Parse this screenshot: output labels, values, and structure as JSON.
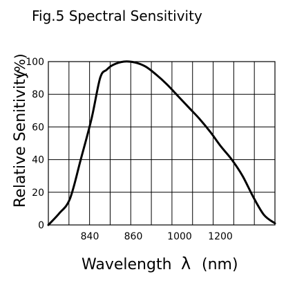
{
  "chart_data": {
    "type": "line",
    "title": "Fig.5 Spectral Sensitivity",
    "xlabel": "Wavelength λ (nm)",
    "xlabel_main": "Wavelength",
    "xlabel_symbol": "λ",
    "xlabel_unit": "(nm)",
    "ylabel": "Relative Senitivity (%)",
    "ylabel_main": "Relative Senitivity",
    "ylabel_unit": "(%)",
    "ylim": [
      0,
      100
    ],
    "yticks": [
      0,
      20,
      40,
      60,
      80,
      100
    ],
    "xtick_labels": [
      "840",
      "860",
      "1000",
      "1200"
    ],
    "grid": true,
    "series": [
      {
        "points": [
          [
            0.0,
            0
          ],
          [
            0.5,
            7
          ],
          [
            1.0,
            16
          ],
          [
            1.5,
            40
          ],
          [
            2.0,
            65
          ],
          [
            2.4,
            90
          ],
          [
            2.7,
            95
          ],
          [
            3.0,
            98
          ],
          [
            3.5,
            100
          ],
          [
            4.0,
            99.5
          ],
          [
            4.5,
            97
          ],
          [
            5.0,
            92
          ],
          [
            5.5,
            86
          ],
          [
            6.0,
            79
          ],
          [
            6.5,
            72
          ],
          [
            7.0,
            65
          ],
          [
            7.5,
            57
          ],
          [
            8.0,
            48
          ],
          [
            8.5,
            40
          ],
          [
            9.0,
            30
          ],
          [
            9.5,
            17
          ],
          [
            10.0,
            6
          ],
          [
            10.5,
            1
          ]
        ]
      }
    ],
    "colors": {
      "line": "#000000",
      "grid": "#000000",
      "background": "#ffffff"
    }
  }
}
